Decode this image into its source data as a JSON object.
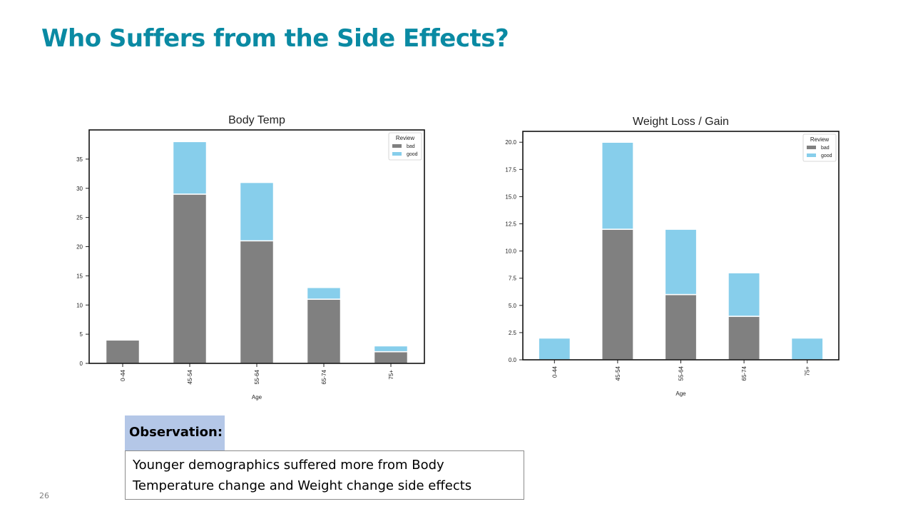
{
  "slide": {
    "title": "Who Suffers from the Side Effects?",
    "title_color": "#0a8aa3",
    "observation_label": "Observation:",
    "observation_text": "Younger demographics suffered more from Body Temperature change and Weight change side effects",
    "page_number": "26"
  },
  "colors": {
    "bad": "#808080",
    "good": "#87ceeb"
  },
  "chart_data": [
    {
      "type": "bar",
      "stacked": true,
      "title": "Body Temp",
      "xlabel": "Age",
      "ylabel": "",
      "categories": [
        "0-44",
        "45-54",
        "55-64",
        "65-74",
        "75+"
      ],
      "series": [
        {
          "name": "bad",
          "values": [
            4,
            29,
            21,
            11,
            2
          ]
        },
        {
          "name": "good",
          "values": [
            0,
            9,
            10,
            2,
            1
          ]
        }
      ],
      "ylim": [
        0,
        40
      ],
      "yticks": [
        0,
        5,
        10,
        15,
        20,
        25,
        30,
        35
      ],
      "ytick_labels": [
        "0",
        "5",
        "10",
        "15",
        "20",
        "25",
        "30",
        "35"
      ],
      "legend": {
        "title": "Review",
        "position": "top-right"
      }
    },
    {
      "type": "bar",
      "stacked": true,
      "title": "Weight Loss / Gain",
      "xlabel": "Age",
      "ylabel": "",
      "categories": [
        "0-44",
        "45-54",
        "55-64",
        "65-74",
        "75+"
      ],
      "series": [
        {
          "name": "bad",
          "values": [
            0,
            12,
            6,
            4,
            0
          ]
        },
        {
          "name": "good",
          "values": [
            2,
            8,
            6,
            4,
            2
          ]
        }
      ],
      "ylim": [
        0,
        21
      ],
      "yticks": [
        0,
        2.5,
        5,
        7.5,
        10,
        12.5,
        15,
        17.5,
        20
      ],
      "ytick_labels": [
        "0.0",
        "2.5",
        "5.0",
        "7.5",
        "10.0",
        "12.5",
        "15.0",
        "17.5",
        "20.0"
      ],
      "legend": {
        "title": "Review",
        "position": "top-right"
      }
    }
  ]
}
